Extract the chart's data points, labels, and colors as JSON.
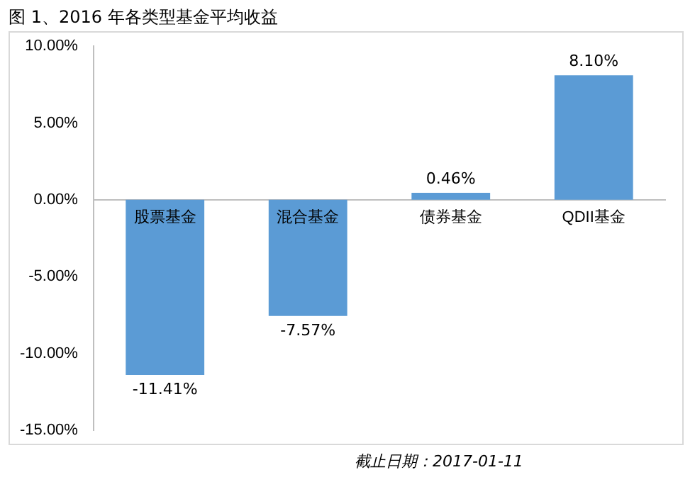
{
  "chart_data": {
    "type": "bar",
    "title": "图 1、2016 年各类型基金平均收益",
    "categories": [
      "股票基金",
      "混合基金",
      "债券基金",
      "QDII基金"
    ],
    "values": [
      -11.41,
      -7.57,
      0.46,
      8.1
    ],
    "color": "#5b9bd5",
    "value_labels": [
      "-11.41%",
      "-7.57%",
      "0.46%",
      "8.10%"
    ],
    "ylim": [
      -15,
      10
    ],
    "yticks": [
      {
        "value": -15,
        "label": "-15.00%"
      },
      {
        "value": -10,
        "label": "-10.00%"
      },
      {
        "value": -5,
        "label": "-5.00%"
      },
      {
        "value": 0,
        "label": "0.00%"
      },
      {
        "value": 5,
        "label": "5.00%"
      },
      {
        "value": 10,
        "label": "10.00%"
      }
    ],
    "grid": false,
    "legend": false,
    "annotations": [
      "截止日期：2017-01-11"
    ]
  }
}
